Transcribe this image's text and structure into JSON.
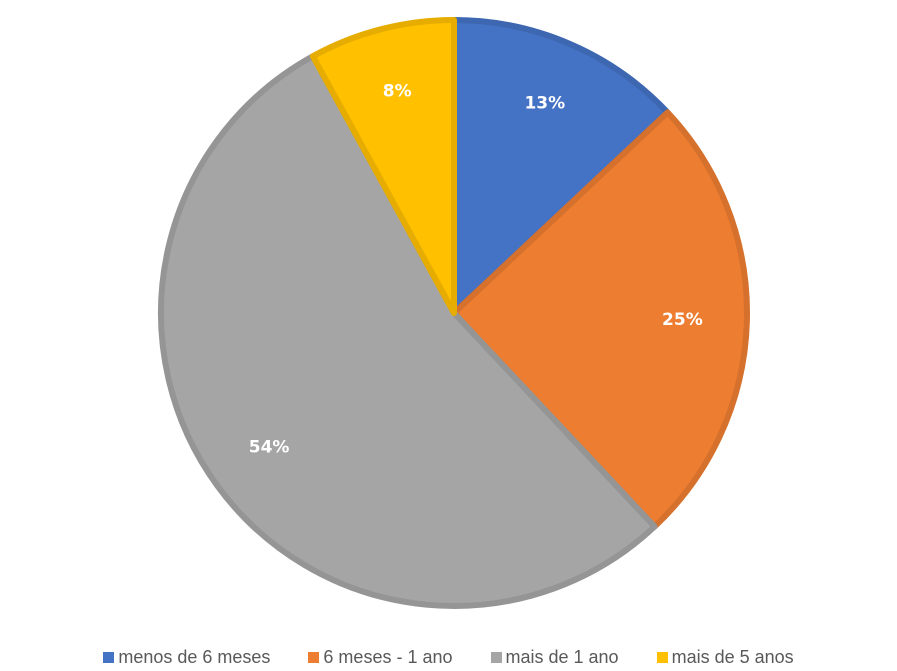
{
  "chart_data": {
    "type": "pie",
    "title": "",
    "slices": [
      {
        "label": "menos de 6 meses",
        "value": 13,
        "display": "13%",
        "color": "#4472C4"
      },
      {
        "label": "6 meses - 1 ano",
        "value": 25,
        "display": "25%",
        "color": "#ED7D31"
      },
      {
        "label": "mais de 1 ano",
        "value": 54,
        "display": "54%",
        "color": "#A5A5A5"
      },
      {
        "label": "mais de 5 anos",
        "value": 8,
        "display": "8%",
        "color": "#FFC000"
      }
    ],
    "start_angle": "12 o'clock",
    "direction": "clockwise",
    "legend_position": "bottom"
  }
}
